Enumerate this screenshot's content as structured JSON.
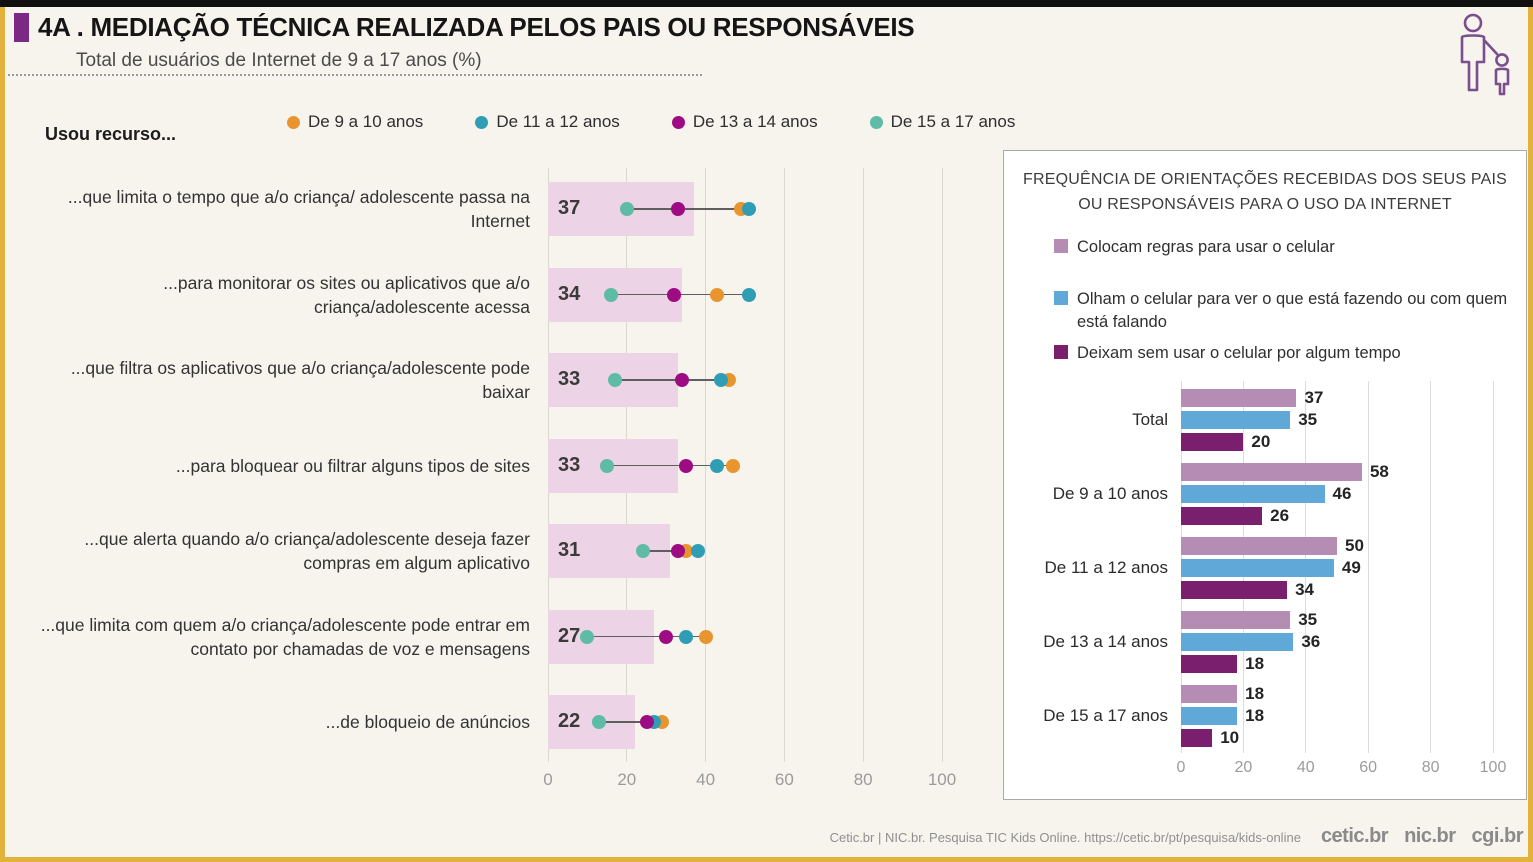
{
  "header": {
    "title": "4A . MEDIAÇÃO TÉCNICA REALIZADA PELOS PAIS OU RESPONSÁVEIS",
    "subtitle": "Total de usuários de Internet de 9 a 17 anos (%)"
  },
  "chart_data": [
    {
      "type": "bar",
      "subtype": "bar-with-dot-plot",
      "orientation": "horizontal",
      "title": "Usou recurso...",
      "unit": "%",
      "xlim": [
        0,
        100
      ],
      "x_ticks": [
        0,
        20,
        40,
        60,
        80,
        100
      ],
      "grid": true,
      "legend_position": "top",
      "bar_color": "#EDD3E6",
      "categories": [
        "...que limita o tempo que a/o criança/ adolescente passa na Internet",
        "...para monitorar os sites ou aplicativos que a/o criança/adolescente acessa",
        "...que filtra os aplicativos que a/o criança/adolescente pode baixar",
        "...para bloquear ou filtrar alguns tipos de sites",
        "...que alerta quando a/o criança/adolescente deseja fazer compras em algum aplicativo",
        "...que limita com quem a/o criança/adolescente pode entrar em contato por chamadas de voz e mensagens",
        "...de bloqueio de anúncios"
      ],
      "total_values": [
        37,
        34,
        33,
        33,
        31,
        27,
        22
      ],
      "dot_series": [
        {
          "name": "De 9 a 10 anos",
          "color": "#E8952F",
          "values": [
            49,
            43,
            46,
            47,
            35,
            40,
            29
          ]
        },
        {
          "name": "De 11 a 12 anos",
          "color": "#2F9EB5",
          "values": [
            51,
            51,
            44,
            43,
            38,
            35,
            27
          ]
        },
        {
          "name": "De 13 a 14 anos",
          "color": "#9E0C83",
          "values": [
            33,
            32,
            34,
            35,
            33,
            30,
            25
          ]
        },
        {
          "name": "De 15 a 17 anos",
          "color": "#5EBBA6",
          "values": [
            20,
            16,
            17,
            15,
            24,
            10,
            13
          ]
        }
      ]
    },
    {
      "type": "bar",
      "subtype": "grouped-horizontal",
      "orientation": "horizontal",
      "title": "FREQUÊNCIA DE ORIENTAÇÕES RECEBIDAS DOS SEUS PAIS OU RESPONSÁVEIS PARA O USO DA INTERNET",
      "unit": "%",
      "xlim": [
        0,
        100
      ],
      "x_ticks": [
        0,
        20,
        40,
        60,
        80,
        100
      ],
      "grid": true,
      "legend_position": "top",
      "categories": [
        "Total",
        "De 9 a 10 anos",
        "De 11 a 12 anos",
        "De 13 a 14 anos",
        "De 15 a 17 anos"
      ],
      "series": [
        {
          "name": "Colocam regras para usar o celular",
          "color": "#B58CB4",
          "values": [
            37,
            58,
            50,
            35,
            18
          ]
        },
        {
          "name": "Olham o celular para ver o que está fazendo ou com quem está falando",
          "color": "#5FA8D8",
          "values": [
            35,
            46,
            49,
            36,
            18
          ]
        },
        {
          "name": "Deixam sem usar o celular por algum tempo",
          "color": "#7A1E6E",
          "values": [
            20,
            26,
            34,
            18,
            10
          ]
        }
      ]
    }
  ],
  "footer": {
    "source": "Cetic.br | NIC.br. Pesquisa TIC Kids Online. https://cetic.br/pt/pesquisa/kids-online",
    "logos": [
      "cetic.br",
      "nic.br",
      "cgi.br"
    ]
  },
  "colors": {
    "frame_yellow": "#E3B23C",
    "background_cream": "#F6F4ED",
    "title_marker_purple": "#7B2982",
    "icon_purple": "#7B4F8E"
  }
}
